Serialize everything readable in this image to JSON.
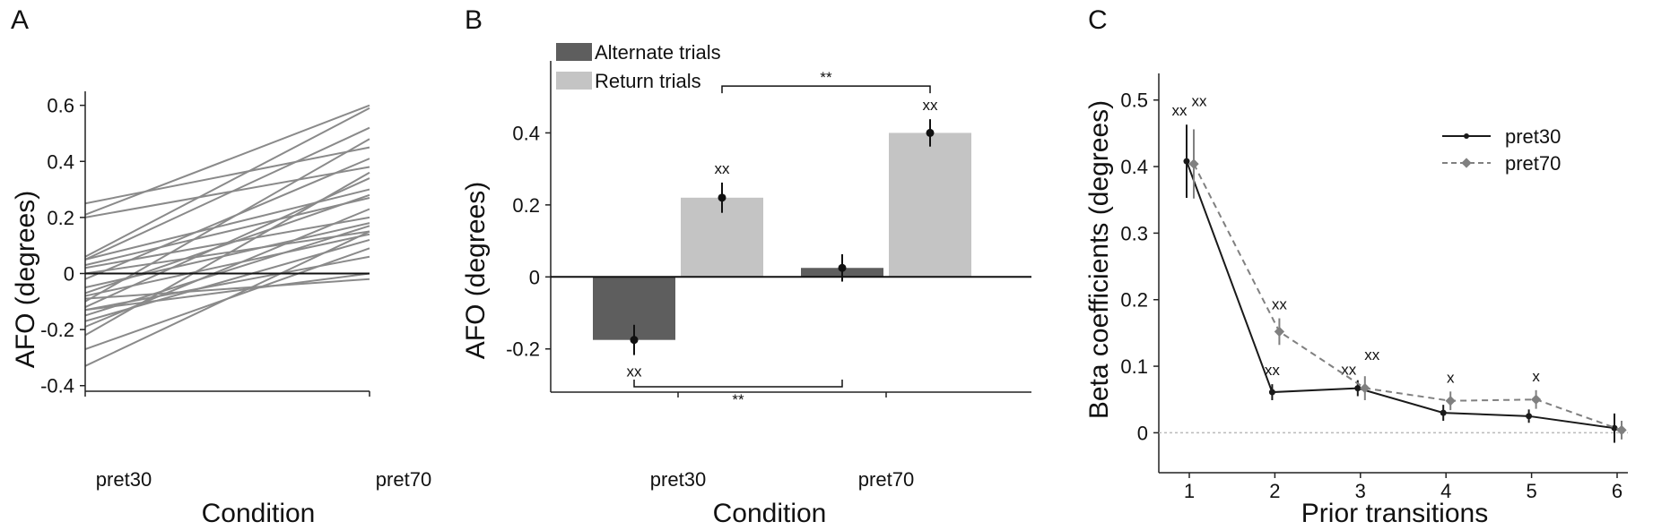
{
  "colors": {
    "subject_line": "#8a8a8a",
    "alternate_bar": "#5e5e5e",
    "return_bar": "#c4c4c4",
    "pret30_line": "#1a1a1a",
    "pret70_line": "#808080",
    "zero_dotted": "#bbbbbb"
  },
  "chart_data": [
    {
      "panel": "A",
      "type": "line",
      "categories": [
        "pret30",
        "pret70"
      ],
      "xlabel": "Condition",
      "ylabel": "AFO (degrees)",
      "ylim": [
        -0.42,
        0.65
      ],
      "yticks": [
        "-0.4",
        "-0.2",
        "0",
        "0.2",
        "0.4",
        "0.6"
      ],
      "yticks_values": [
        -0.4,
        -0.2,
        0,
        0.2,
        0.4,
        0.6
      ],
      "subjects": [
        [
          0.25,
          0.45
        ],
        [
          0.21,
          0.6
        ],
        [
          0.2,
          0.38
        ],
        [
          0.06,
          0.59
        ],
        [
          0.05,
          0.52
        ],
        [
          0.05,
          0.3
        ],
        [
          0.03,
          0.27
        ],
        [
          0.02,
          0.2
        ],
        [
          0.0,
          0.15
        ],
        [
          -0.02,
          0.41
        ],
        [
          -0.05,
          0.18
        ],
        [
          -0.08,
          0.14
        ],
        [
          -0.09,
          -0.02
        ],
        [
          -0.1,
          0.48
        ],
        [
          -0.12,
          0.34
        ],
        [
          -0.13,
          0.06
        ],
        [
          -0.15,
          0.17
        ],
        [
          -0.17,
          0.12
        ],
        [
          -0.19,
          0.23
        ],
        [
          -0.22,
          0.36
        ],
        [
          -0.27,
          0.09
        ],
        [
          -0.33,
          0.15
        ],
        [
          -0.13,
          0.0
        ],
        [
          -0.07,
          0.28
        ]
      ]
    },
    {
      "panel": "B",
      "type": "bar",
      "categories": [
        "pret30",
        "pret70"
      ],
      "xlabel": "Condition",
      "ylabel": "AFO (degrees)",
      "ylim": [
        -0.32,
        0.6
      ],
      "yticks": [
        "-0.2",
        "0",
        "0.2",
        "0.4"
      ],
      "yticks_values": [
        -0.2,
        0,
        0.2,
        0.4
      ],
      "legend_position": "top-left",
      "series": [
        {
          "name": "Alternate trials",
          "values": [
            -0.175,
            0.025
          ],
          "errors": [
            0.042,
            0.038
          ],
          "markers": [
            "xx",
            ""
          ]
        },
        {
          "name": "Return trials",
          "values": [
            0.22,
            0.4
          ],
          "errors": [
            0.042,
            0.038
          ],
          "markers": [
            "xx",
            "xx"
          ]
        }
      ],
      "significance": [
        {
          "between": "Return trials pret30 vs pret70",
          "label": "**",
          "level": 0.53
        },
        {
          "between": "Alternate trials pret30 vs pret70",
          "label": "**",
          "level": -0.305
        }
      ]
    },
    {
      "panel": "C",
      "type": "line",
      "x": [
        1,
        2,
        3,
        4,
        5,
        6
      ],
      "xlabel": "Prior transitions",
      "ylabel": "Beta coefficients (degrees)",
      "ylim": [
        -0.06,
        0.54
      ],
      "xticks": [
        "1",
        "2",
        "3",
        "4",
        "5",
        "6"
      ],
      "yticks": [
        "0",
        "0.1",
        "0.2",
        "0.3",
        "0.4",
        "0.5"
      ],
      "yticks_values": [
        0,
        0.1,
        0.2,
        0.3,
        0.4,
        0.5
      ],
      "legend_position": "top-right",
      "series": [
        {
          "name": "pret30",
          "style": "solid",
          "values": [
            0.408,
            0.061,
            0.067,
            0.03,
            0.025,
            0.007
          ],
          "errors": [
            0.055,
            0.012,
            0.012,
            0.012,
            0.01,
            0.022
          ],
          "markers": [
            "xx",
            "xx",
            "xx",
            "",
            "",
            ""
          ]
        },
        {
          "name": "pret70",
          "style": "dashed",
          "values": [
            0.404,
            0.152,
            0.067,
            0.048,
            0.05,
            0.004
          ],
          "errors": [
            0.052,
            0.02,
            0.018,
            0.014,
            0.014,
            0.014
          ],
          "markers": [
            "xx",
            "xx",
            "xx",
            "x",
            "x",
            ""
          ]
        }
      ]
    }
  ],
  "panels": [
    {
      "letter": "A"
    },
    {
      "letter": "B"
    },
    {
      "letter": "C"
    }
  ]
}
